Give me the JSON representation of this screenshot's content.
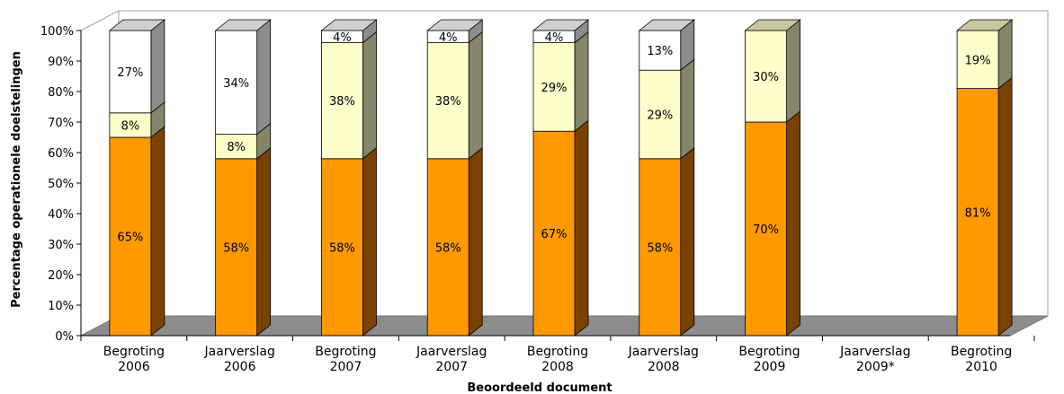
{
  "chart_data": {
    "type": "bar",
    "stacked": true,
    "three_d": true,
    "xlabel": "Beoordeeld document",
    "ylabel": "Percentage operationele doelstelingen",
    "ylim": [
      0,
      100
    ],
    "yticks": [
      "0%",
      "10%",
      "20%",
      "30%",
      "40%",
      "50%",
      "60%",
      "70%",
      "80%",
      "90%",
      "100%"
    ],
    "categories": [
      [
        "Begroting",
        "2006"
      ],
      [
        "Jaarverslag",
        "2006"
      ],
      [
        "Begroting",
        "2007"
      ],
      [
        "Jaarverslag",
        "2007"
      ],
      [
        "Begroting",
        "2008"
      ],
      [
        "Jaarverslag",
        "2008"
      ],
      [
        "Begroting",
        "2009"
      ],
      [
        "Jaarverslag",
        "2009*"
      ],
      [
        "Begroting",
        "2010"
      ]
    ],
    "series": [
      {
        "color": "#ff9900",
        "side_color": "#7a4200",
        "top_color": "#c87400",
        "values": [
          65,
          58,
          58,
          58,
          67,
          58,
          70,
          null,
          81
        ],
        "labels": [
          "65%",
          "58%",
          "58%",
          "58%",
          "67%",
          "58%",
          "70%",
          "",
          "81%"
        ]
      },
      {
        "color": "#ffffcc",
        "side_color": "#85856a",
        "top_color": "#c8c8a0",
        "values": [
          8,
          8,
          38,
          38,
          29,
          29,
          30,
          null,
          19
        ],
        "labels": [
          "8%",
          "8%",
          "38%",
          "38%",
          "29%",
          "29%",
          "30%",
          "",
          "19%"
        ]
      },
      {
        "color": "#ffffff",
        "side_color": "#8c8c8c",
        "top_color": "#cfcfcf",
        "values": [
          27,
          34,
          4,
          4,
          4,
          13,
          null,
          null,
          null
        ],
        "labels": [
          "27%",
          "34%",
          "4%",
          "4%",
          "4%",
          "13%",
          "",
          "",
          ""
        ]
      }
    ],
    "grid": false,
    "floor_color": "#8c8c8c",
    "legend": "none"
  }
}
